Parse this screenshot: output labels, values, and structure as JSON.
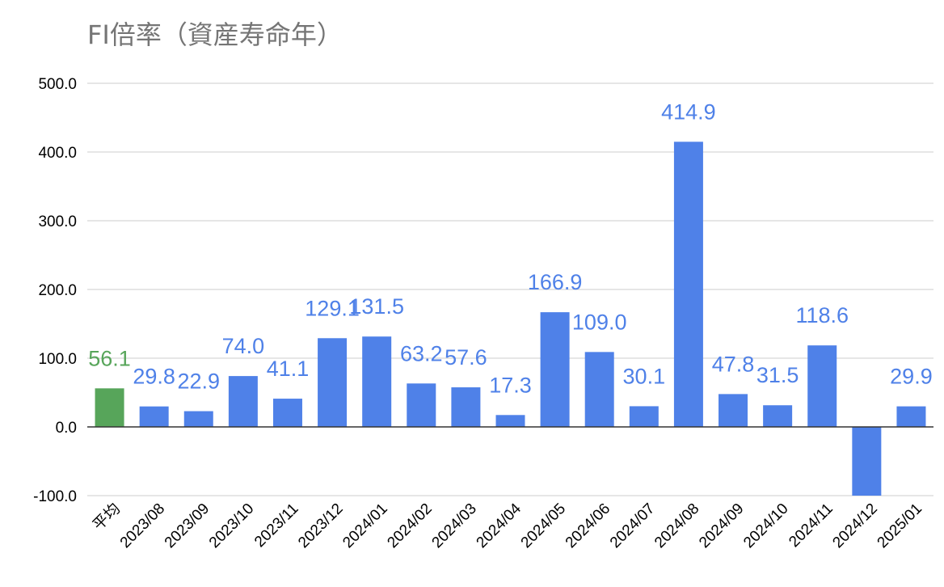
{
  "chart_data": {
    "type": "bar",
    "title": "FI倍率（資産寿命年）",
    "xlabel": "",
    "ylabel": "",
    "ylim": [
      -100,
      500
    ],
    "yticks": [
      "500.0",
      "400.0",
      "300.0",
      "200.0",
      "100.0",
      "0.0",
      "-100.0"
    ],
    "ytick_values": [
      500,
      400,
      300,
      200,
      100,
      0,
      -100
    ],
    "grid": true,
    "legend": "none",
    "categories": [
      "平均",
      "2023/08",
      "2023/09",
      "2023/10",
      "2023/11",
      "2023/12",
      "2024/01",
      "2024/02",
      "2024/03",
      "2024/04",
      "2024/05",
      "2024/06",
      "2024/07",
      "2024/08",
      "2024/09",
      "2024/10",
      "2024/11",
      "2024/12",
      "2025/01"
    ],
    "values": [
      56.1,
      29.8,
      22.9,
      74.0,
      41.1,
      129.1,
      131.5,
      63.2,
      57.6,
      17.3,
      166.9,
      109.0,
      30.1,
      414.9,
      47.8,
      31.5,
      118.6,
      -100,
      29.9
    ],
    "data_labels": [
      "56.1",
      "29.8",
      "22.9",
      "74.0",
      "41.1",
      "129.1",
      "131.5",
      "63.2",
      "57.6",
      "17.3",
      "166.9",
      "109.0",
      "30.1",
      "414.9",
      "47.8",
      "31.5",
      "118.6",
      "",
      "29.9"
    ],
    "colors": {
      "average_bar": "#57a55a",
      "bar": "#4f81e8",
      "average_label": "#57a55a",
      "label": "#4f81e8",
      "grid": "#cccccc",
      "zero_line": "#333333",
      "title": "#757575"
    }
  }
}
